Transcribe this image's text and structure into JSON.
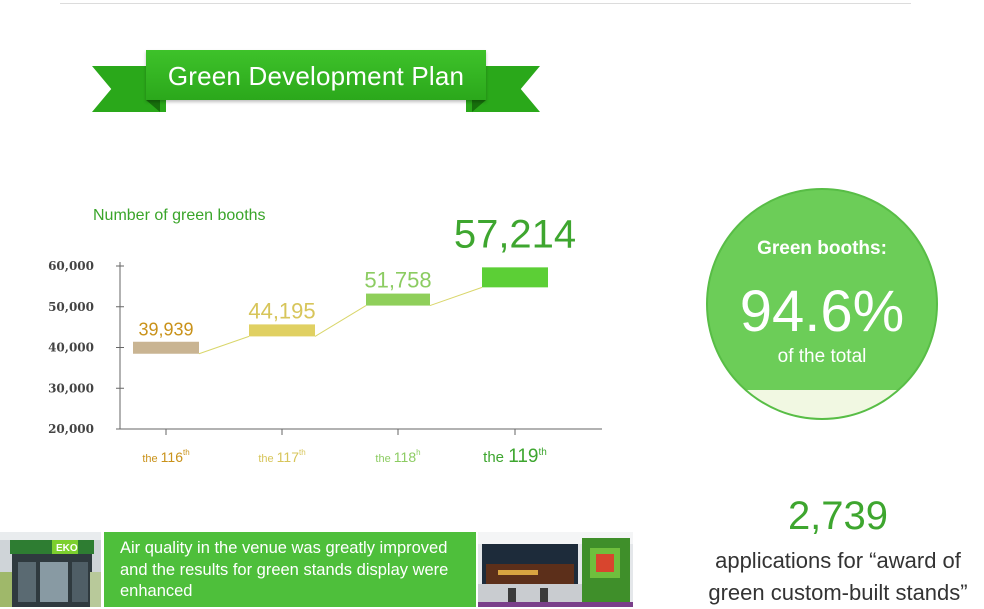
{
  "banner": {
    "title": "Green Development Plan"
  },
  "chart_data": {
    "type": "bar",
    "title": "Number of green booths",
    "categories": [
      {
        "prefix": "the",
        "num": "116",
        "sup": "th"
      },
      {
        "prefix": "the",
        "num": "117",
        "sup": "th"
      },
      {
        "prefix": "the",
        "num": "118",
        "sup": "h"
      },
      {
        "prefix": "the",
        "num": "119",
        "sup": "th"
      }
    ],
    "values": [
      39939,
      44195,
      51758,
      57214
    ],
    "value_labels": [
      "39,939",
      "44,195",
      "51,758",
      "57,214"
    ],
    "bar_colors": [
      "#c9b492",
      "#e0d062",
      "#8fcf5a",
      "#5ccf36"
    ],
    "label_colors": [
      "#c9921a",
      "#d7c55a",
      "#8ccc62",
      "#3ea62f"
    ],
    "ylim": [
      20000,
      60000
    ],
    "yticks": [
      {
        "value": 60000,
        "label": "60,000"
      },
      {
        "value": 50000,
        "label": "50,000"
      },
      {
        "value": 40000,
        "label": "40,000"
      },
      {
        "value": 30000,
        "label": "30,000"
      },
      {
        "value": 20000,
        "label": "20,000"
      }
    ],
    "trend_line_color": "#d9d66a",
    "axis_color": "#666666",
    "grid": false
  },
  "share": {
    "label": "Green booths:",
    "value": "94.6%",
    "sub": "of the total"
  },
  "award": {
    "count": "2,739",
    "text": "applications for “award of green custom-built stands”"
  },
  "caption": {
    "text": "Air quality in the venue was greatly improved and the results for green stands display were enhanced"
  },
  "photos": {
    "left_sign": "EKO"
  }
}
